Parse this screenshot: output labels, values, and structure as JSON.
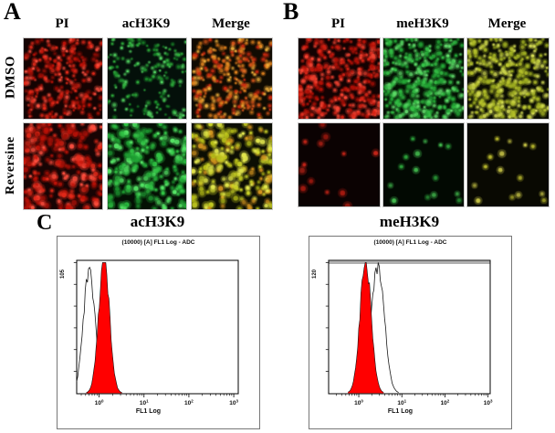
{
  "figure": {
    "panels": {
      "A": {
        "label": "A",
        "col_headers": [
          "PI",
          "acH3K9",
          "Merge"
        ],
        "row_labels": [
          "DMSO",
          "Reversine"
        ]
      },
      "B": {
        "label": "B",
        "col_headers": [
          "PI",
          "meH3K9",
          "Merge"
        ],
        "row_labels": []
      },
      "C": {
        "label": "C",
        "chart_titles": [
          "acH3K9",
          "meH3K9"
        ]
      }
    }
  },
  "colors": {
    "pi_red": "#dd2418",
    "stain_green": "#2fbf43",
    "merge_orange": "#e0821e",
    "merge_yellow_green": "#c6cf2c",
    "histogram_fill": "#ff0000",
    "histogram_outline": "#1a1a1a"
  },
  "micrographs": [
    {
      "name": "A-DMSO-PI",
      "bg": "#150302",
      "dot_colors": [
        "#e42a1a",
        "#c01208",
        "#ff5040",
        "#8f0d06"
      ],
      "count": 270,
      "r": [
        1.0,
        2.1
      ],
      "seed": 101
    },
    {
      "name": "A-DMSO-acH3K9",
      "bg": "#04100a",
      "dot_colors": [
        "#2fae3c",
        "#1c8f2c",
        "#55d964"
      ],
      "count": 160,
      "r": [
        0.9,
        1.9
      ],
      "seed": 102
    },
    {
      "name": "A-DMSO-Merge",
      "bg": "#100b02",
      "dot_colors": [
        "#e0821e",
        "#d4561a",
        "#f2b13c",
        "#cc2a10"
      ],
      "count": 270,
      "r": [
        1.0,
        2.1
      ],
      "seed": 101
    },
    {
      "name": "A-Reversine-PI",
      "bg": "#170404",
      "dot_colors": [
        "#e42a1a",
        "#c01208",
        "#ff5040",
        "#9b1008"
      ],
      "count": 230,
      "r": [
        1.4,
        3.0
      ],
      "seed": 103
    },
    {
      "name": "A-Reversine-acH3K9",
      "bg": "#041004",
      "dot_colors": [
        "#31c545",
        "#57e667",
        "#1f9e33"
      ],
      "count": 215,
      "r": [
        1.4,
        3.0
      ],
      "seed": 104
    },
    {
      "name": "A-Reversine-Merge",
      "bg": "#0c0e03",
      "dot_colors": [
        "#ccd428",
        "#e3e84e",
        "#d1931f",
        "#b8c019"
      ],
      "count": 215,
      "r": [
        1.4,
        3.0
      ],
      "seed": 104
    },
    {
      "name": "B-DMSO-PI",
      "bg": "#120202",
      "dot_colors": [
        "#d92416",
        "#b01007",
        "#f74634"
      ],
      "count": 330,
      "r": [
        1.1,
        2.3
      ],
      "seed": 105
    },
    {
      "name": "B-DMSO-meH3K9",
      "bg": "#041204",
      "dot_colors": [
        "#35c146",
        "#63de6d",
        "#23a435"
      ],
      "count": 330,
      "r": [
        1.1,
        2.3
      ],
      "seed": 106
    },
    {
      "name": "B-DMSO-Merge",
      "bg": "#0b0d03",
      "dot_colors": [
        "#b9c52c",
        "#d4dc55",
        "#9fae22"
      ],
      "count": 330,
      "r": [
        1.1,
        2.3
      ],
      "seed": 106
    },
    {
      "name": "B-Reversine-PI",
      "bg": "#0b0202",
      "dot_colors": [
        "#a81a10",
        "#c22418"
      ],
      "count": 13,
      "r": [
        1.6,
        3.0
      ],
      "seed": 107
    },
    {
      "name": "B-Reversine-meH3K9",
      "bg": "#020902",
      "dot_colors": [
        "#2da63c",
        "#47c653"
      ],
      "count": 15,
      "r": [
        1.6,
        3.0
      ],
      "seed": 108
    },
    {
      "name": "B-Reversine-Merge",
      "bg": "#090902",
      "dot_colors": [
        "#bdbd2e",
        "#d0cd4a"
      ],
      "count": 15,
      "r": [
        1.6,
        3.0
      ],
      "seed": 108
    }
  ],
  "chart_data": [
    {
      "type": "area",
      "title": "acH3K9",
      "header": "(10000) [A] FL1 Log - ADC",
      "xlabel": "FL1 Log",
      "ylabel_max": "105",
      "ylim": [
        0,
        105
      ],
      "x_scale": "log",
      "x_ticks": [
        "10^0",
        "10^1",
        "10^2",
        "10^3"
      ],
      "x_log_range": [
        -0.5,
        3.1
      ],
      "grid": false,
      "legend": "none",
      "top_band": false,
      "seed": 11,
      "series": [
        {
          "name": "open_black_histogram",
          "style": "open",
          "color": "#1a1a1a",
          "peak_log": -0.22,
          "sigma_log": 0.13,
          "height": 0.95
        },
        {
          "name": "filled_red_histogram",
          "style": "filled",
          "color": "#ff0000",
          "peak_log": 0.11,
          "sigma_log": 0.12,
          "height": 1.03
        }
      ]
    },
    {
      "type": "area",
      "title": "meH3K9",
      "header": "(10000) [A] FL1 Log - ADC",
      "xlabel": "FL1 Log",
      "ylabel_max": "120",
      "ylim": [
        0,
        120
      ],
      "x_scale": "log",
      "x_ticks": [
        "10^0",
        "10^1",
        "10^2",
        "10^3"
      ],
      "x_log_range": [
        -0.7,
        3.05
      ],
      "grid": false,
      "legend": "none",
      "top_band": true,
      "seed": 23,
      "series": [
        {
          "name": "open_black_histogram",
          "style": "open",
          "color": "#1a1a1a",
          "peak_log": 0.44,
          "sigma_log": 0.15,
          "height": 0.99
        },
        {
          "name": "filled_red_histogram",
          "style": "filled",
          "color": "#ff0000",
          "peak_log": 0.16,
          "sigma_log": 0.13,
          "height": 1.02
        }
      ]
    }
  ]
}
